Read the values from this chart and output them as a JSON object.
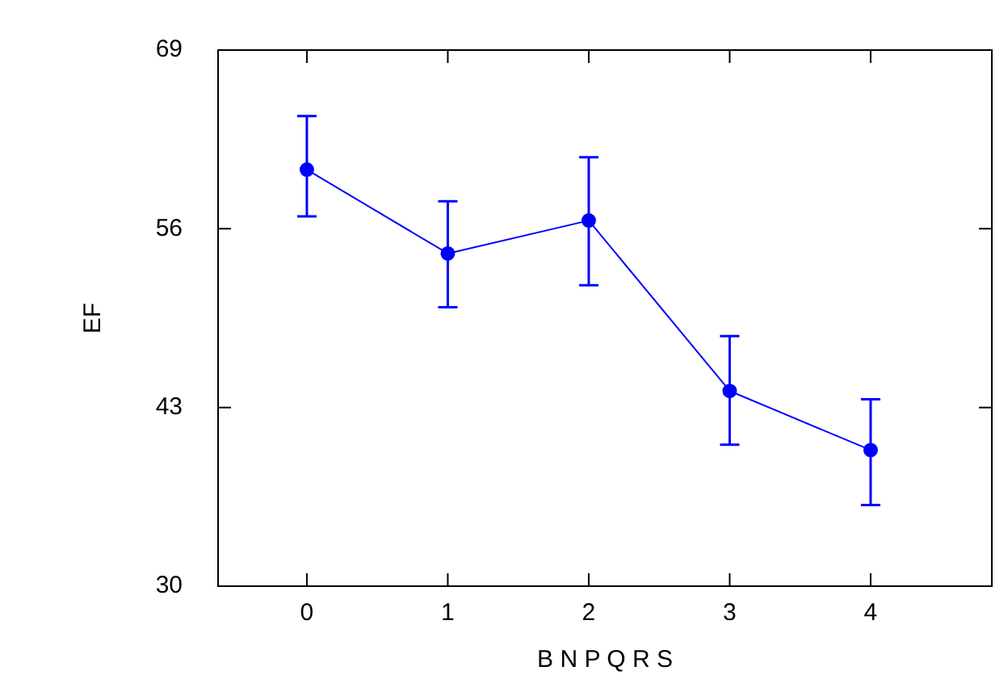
{
  "chart_data": {
    "type": "line",
    "xlabel": "B N P Q R S",
    "ylabel": "EF",
    "x": [
      0,
      1,
      2,
      3,
      4
    ],
    "series": [
      {
        "color": "#0000ff",
        "values": [
          60.3,
          54.2,
          56.6,
          44.2,
          39.9
        ],
        "errors": [
          [
            56.9,
            64.2
          ],
          [
            50.3,
            58.0
          ],
          [
            51.9,
            61.2
          ],
          [
            40.3,
            48.2
          ],
          [
            35.9,
            43.6
          ]
        ]
      }
    ],
    "xlim": [
      -0.63,
      4.86
    ],
    "xticks": [
      0,
      1,
      2,
      3,
      4
    ],
    "ylim": [
      30,
      69
    ],
    "yticks": [
      30,
      43,
      56,
      69
    ],
    "grid": false,
    "legend": false,
    "marker": "circle",
    "line_style": "solid"
  }
}
